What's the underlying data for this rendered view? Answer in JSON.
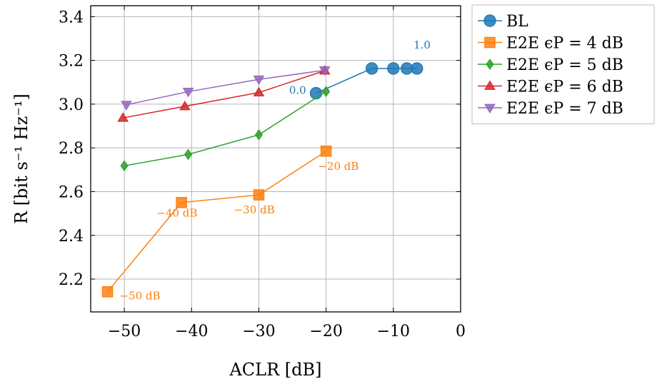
{
  "chart_data": {
    "type": "line",
    "xlabel": "ACLR [dB]",
    "ylabel": "R [bit s⁻¹ Hz⁻¹]",
    "xlim": [
      -55,
      0
    ],
    "ylim": [
      2.05,
      3.45
    ],
    "xticks": [
      -50,
      -40,
      -30,
      -20,
      -10,
      0
    ],
    "xtick_labels": [
      "−50",
      "−40",
      "−30",
      "−20",
      "−10",
      "0"
    ],
    "yticks": [
      2.2,
      2.4,
      2.6,
      2.8,
      3.0,
      3.2,
      3.4
    ],
    "ytick_labels": [
      "2.2",
      "2.4",
      "2.6",
      "2.8",
      "3.0",
      "3.2",
      "3.4"
    ],
    "grid": true,
    "legend_position": "outside-right",
    "series": [
      {
        "name": "BL",
        "color": "#1f77b4",
        "marker": "circle",
        "points": [
          [
            -21.5,
            3.05
          ],
          [
            -13.2,
            3.163
          ],
          [
            -10.0,
            3.163
          ],
          [
            -8.0,
            3.163
          ],
          [
            -6.5,
            3.163
          ]
        ]
      },
      {
        "name": "E2E ϵP = 4 dB",
        "color": "#ff7f0e",
        "marker": "square",
        "points": [
          [
            -52.5,
            2.142
          ],
          [
            -41.5,
            2.55
          ],
          [
            -30.0,
            2.585
          ],
          [
            -20.0,
            2.785
          ]
        ]
      },
      {
        "name": "E2E ϵP = 5 dB",
        "color": "#2ca02c",
        "marker": "diamond",
        "points": [
          [
            -50.0,
            2.718
          ],
          [
            -40.5,
            2.77
          ],
          [
            -30.0,
            2.86
          ],
          [
            -20.0,
            3.058
          ]
        ]
      },
      {
        "name": "E2E ϵP = 6 dB",
        "color": "#d62728",
        "marker": "triangle-up",
        "points": [
          [
            -50.2,
            2.937
          ],
          [
            -41.0,
            2.99
          ],
          [
            -30.0,
            3.053
          ],
          [
            -20.2,
            3.153
          ]
        ]
      },
      {
        "name": "E2E ϵP = 7 dB",
        "color": "#9467bd",
        "marker": "triangle-down",
        "points": [
          [
            -49.7,
            2.997
          ],
          [
            -40.5,
            3.057
          ],
          [
            -30.0,
            3.113
          ],
          [
            -20.2,
            3.155
          ]
        ]
      }
    ],
    "annotations": [
      {
        "text": "1.0",
        "x": -7.0,
        "y": 3.255,
        "color": "#1f77b4"
      },
      {
        "text": "0.0",
        "x": -25.5,
        "y": 3.047,
        "color": "#1f77b4"
      },
      {
        "text": "−20 dB",
        "x": -21.2,
        "y": 2.7,
        "color": "#ff7f0e"
      },
      {
        "text": "−30 dB",
        "x": -33.7,
        "y": 2.5,
        "color": "#ff7f0e"
      },
      {
        "text": "−40 dB",
        "x": -45.2,
        "y": 2.485,
        "color": "#ff7f0e"
      },
      {
        "text": "−50 dB",
        "x": -50.7,
        "y": 2.107,
        "color": "#ff7f0e"
      }
    ]
  }
}
